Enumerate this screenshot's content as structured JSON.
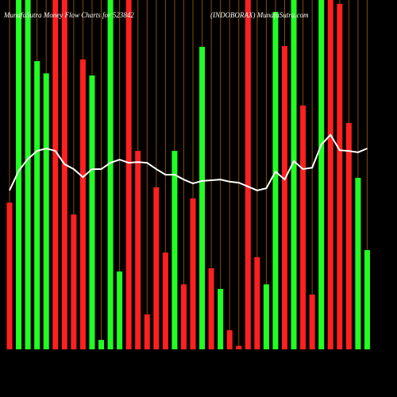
{
  "chart_data": {
    "type": "bar",
    "title": "MunafaSutra Money Flow Charts for 523842",
    "subtitle": "(INDOBORAX) MunafaSutra.com",
    "categories": [
      null,
      null,
      null,
      null,
      null,
      null,
      null,
      null,
      null,
      null,
      null,
      null,
      null,
      null,
      null,
      null,
      null,
      null,
      null,
      null,
      null,
      null,
      null,
      null,
      null,
      null,
      null,
      null,
      null,
      null,
      null,
      null,
      null,
      null,
      null,
      null,
      null,
      null,
      null,
      null
    ],
    "values": [
      42,
      100,
      100,
      82.5,
      79,
      100,
      100,
      38.6,
      83,
      78.4,
      2.7,
      100,
      22.3,
      100,
      56.8,
      10,
      46.4,
      27.7,
      56.8,
      18.6,
      43.2,
      86.6,
      23.2,
      17.3,
      5.5,
      1,
      100,
      26.4,
      18.6,
      96.6,
      86.8,
      100,
      69.8,
      15.7,
      100,
      100,
      98.9,
      64.8,
      49.1,
      28.4
    ],
    "bar_colors": [
      "#ff2020",
      "#22ff22",
      "#22ff22",
      "#22ff22",
      "#22ff22",
      "#ff2020",
      "#ff2020",
      "#ff2020",
      "#ff2020",
      "#22ff22",
      "#22ff22",
      "#22ff22",
      "#22ff22",
      "#ff2020",
      "#ff2020",
      "#ff2020",
      "#ff2020",
      "#ff2020",
      "#22ff22",
      "#ff2020",
      "#ff2020",
      "#22ff22",
      "#ff2020",
      "#22ff22",
      "#ff2020",
      "#ff2020",
      "#ff2020",
      "#ff2020",
      "#22ff22",
      "#22ff22",
      "#ff2020",
      "#22ff22",
      "#ff2020",
      "#ff2020",
      "#22ff22",
      "#ff2020",
      "#ff2020",
      "#ff2020",
      "#22ff22",
      "#22ff22"
    ],
    "line": {
      "color": "#ffffff",
      "values": [
        45.5,
        51.1,
        54.5,
        56.8,
        57.5,
        56.8,
        53,
        51.6,
        49.3,
        51.6,
        51.6,
        53.4,
        54.3,
        53.4,
        53.6,
        53.4,
        51.6,
        50,
        50,
        48.6,
        47.5,
        48.2,
        48.4,
        48.6,
        48,
        47.7,
        46.6,
        45.5,
        46.1,
        50.9,
        48.6,
        53.9,
        51.6,
        52,
        58.6,
        61.4,
        57,
        56.8,
        56.4,
        57.5
      ]
    },
    "ylim": [
      0,
      100
    ]
  }
}
